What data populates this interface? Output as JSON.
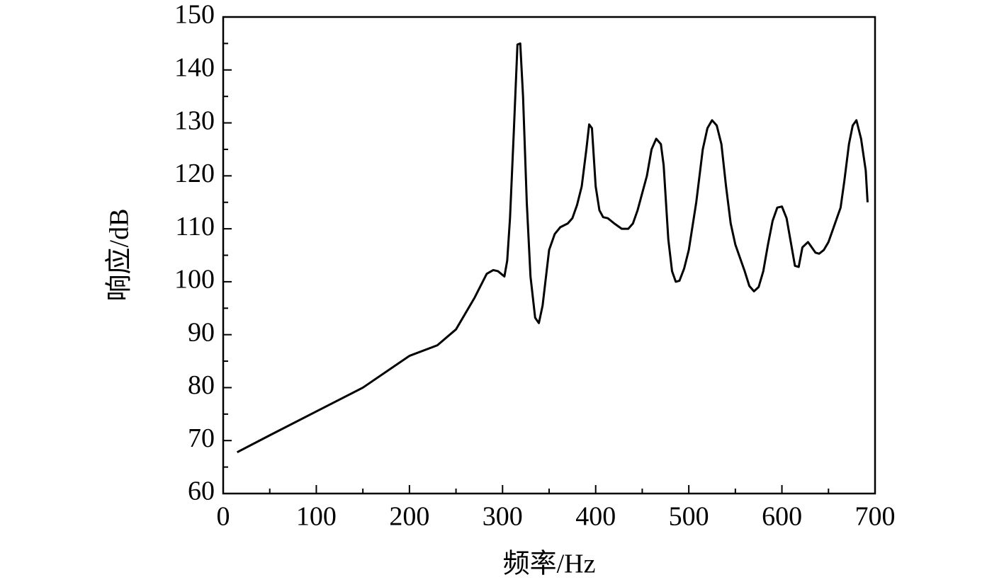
{
  "chart_data": {
    "type": "line",
    "x_label": "频率/Hz",
    "y_label": "响应/dB",
    "xlim": [
      0,
      700
    ],
    "ylim": [
      60,
      150
    ],
    "xticks": [
      0,
      100,
      200,
      300,
      400,
      500,
      600,
      700
    ],
    "yticks": [
      60,
      70,
      80,
      90,
      100,
      110,
      120,
      130,
      140,
      150
    ],
    "xminorticks": [
      50,
      150,
      250,
      350,
      450,
      550,
      650
    ],
    "yminorticks": [
      65,
      75,
      85,
      95,
      105,
      115,
      125,
      135,
      145
    ],
    "grid": false,
    "series": [
      {
        "color": "#000000",
        "x": [
          15,
          50,
          100,
          150,
          200,
          230,
          250,
          270,
          283,
          290,
          295,
          302,
          305,
          308,
          312,
          316,
          319,
          322,
          326,
          330,
          335,
          339,
          343,
          350,
          356,
          362,
          370,
          375,
          380,
          385,
          390,
          393,
          396,
          400,
          404,
          408,
          413,
          420,
          428,
          435,
          440,
          445,
          455,
          460,
          465,
          470,
          473,
          478,
          482,
          486,
          490,
          495,
          500,
          508,
          515,
          520,
          525,
          530,
          535,
          540,
          545,
          550,
          555,
          560,
          565,
          570,
          575,
          580,
          585,
          590,
          595,
          600,
          605,
          610,
          614,
          618,
          622,
          628,
          632,
          636,
          640,
          645,
          650,
          655,
          660,
          663,
          667,
          672,
          676,
          680,
          685,
          690,
          692
        ],
        "values": [
          67.8,
          71,
          75.5,
          80,
          86,
          88,
          91,
          97,
          101.5,
          102.2,
          102,
          101,
          104,
          112,
          128,
          144.8,
          145,
          135,
          115,
          101,
          93.2,
          92.2,
          95.5,
          106,
          109,
          110.3,
          111,
          112,
          114.5,
          118,
          125,
          129.7,
          129,
          118,
          113.5,
          112.2,
          112,
          111,
          110,
          110,
          111,
          113.5,
          120,
          125,
          127,
          126,
          122,
          108,
          102,
          100,
          100.2,
          102.5,
          106,
          115,
          125,
          129,
          130.5,
          129.5,
          126,
          118,
          111,
          107,
          104.5,
          102,
          99.2,
          98.2,
          99,
          102,
          107,
          111.5,
          114,
          114.2,
          112,
          107,
          103,
          102.8,
          106.5,
          107.5,
          106.5,
          105.5,
          105.3,
          106,
          107.5,
          110,
          112.5,
          114,
          119,
          126,
          129.5,
          130.5,
          127,
          121,
          115
        ]
      }
    ]
  }
}
